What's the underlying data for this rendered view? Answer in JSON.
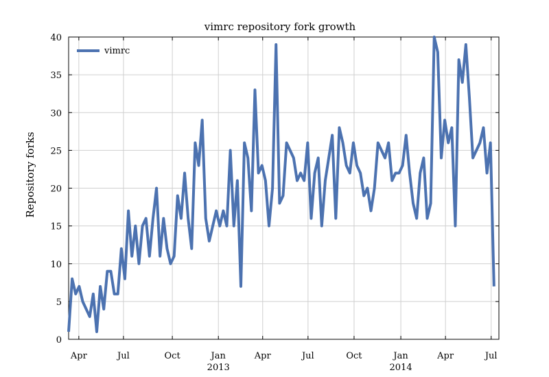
{
  "chart_data": {
    "type": "line",
    "title": "vimrc repository fork growth",
    "y_label": "Repository forks",
    "series": [
      {
        "name": "vimrc",
        "color": "#4c72b0",
        "values": [
          1,
          8,
          6,
          7,
          5,
          4,
          3,
          6,
          1,
          7,
          4,
          9,
          9,
          6,
          6,
          12,
          8,
          17,
          11,
          15,
          10,
          15,
          16,
          11,
          16,
          20,
          11,
          16,
          12,
          10,
          11,
          19,
          16,
          22,
          16,
          12,
          26,
          23,
          29,
          16,
          13,
          15,
          17,
          15,
          17,
          15,
          25,
          15,
          21,
          7,
          26,
          24,
          17,
          33,
          22,
          23,
          21,
          15,
          20,
          39,
          18,
          19,
          26,
          25,
          24,
          21,
          22,
          21,
          26,
          16,
          22,
          24,
          15,
          21,
          24,
          27,
          16,
          28,
          26,
          23,
          22,
          26,
          23,
          22,
          19,
          20,
          17,
          20,
          26,
          25,
          24,
          26,
          21,
          22,
          22,
          23,
          27,
          22,
          18,
          16,
          22,
          24,
          16,
          18,
          40,
          38,
          24,
          29,
          26,
          28,
          15,
          37,
          34,
          39,
          32,
          24,
          25,
          26,
          28,
          22,
          26,
          7
        ]
      }
    ],
    "xlim": [
      0,
      122.4
    ],
    "xticks": [
      {
        "value": 2.9,
        "label": "Apr"
      },
      {
        "value": 15.6,
        "label": "Jul"
      },
      {
        "value": 29.5,
        "label": "Oct"
      },
      {
        "value": 42.6,
        "label": "Jan",
        "sublabel": "2013"
      },
      {
        "value": 55.2,
        "label": "Apr"
      },
      {
        "value": 68.1,
        "label": "Jul"
      },
      {
        "value": 81.2,
        "label": "Oct"
      },
      {
        "value": 94.5,
        "label": "Jan",
        "sublabel": "2014"
      },
      {
        "value": 107.2,
        "label": "Apr"
      },
      {
        "value": 120.2,
        "label": "Jul"
      }
    ],
    "ylim": [
      0,
      40
    ],
    "yticks": [
      0,
      5,
      10,
      15,
      20,
      25,
      30,
      35,
      40
    ],
    "grid": true,
    "legend": "upper-left"
  }
}
